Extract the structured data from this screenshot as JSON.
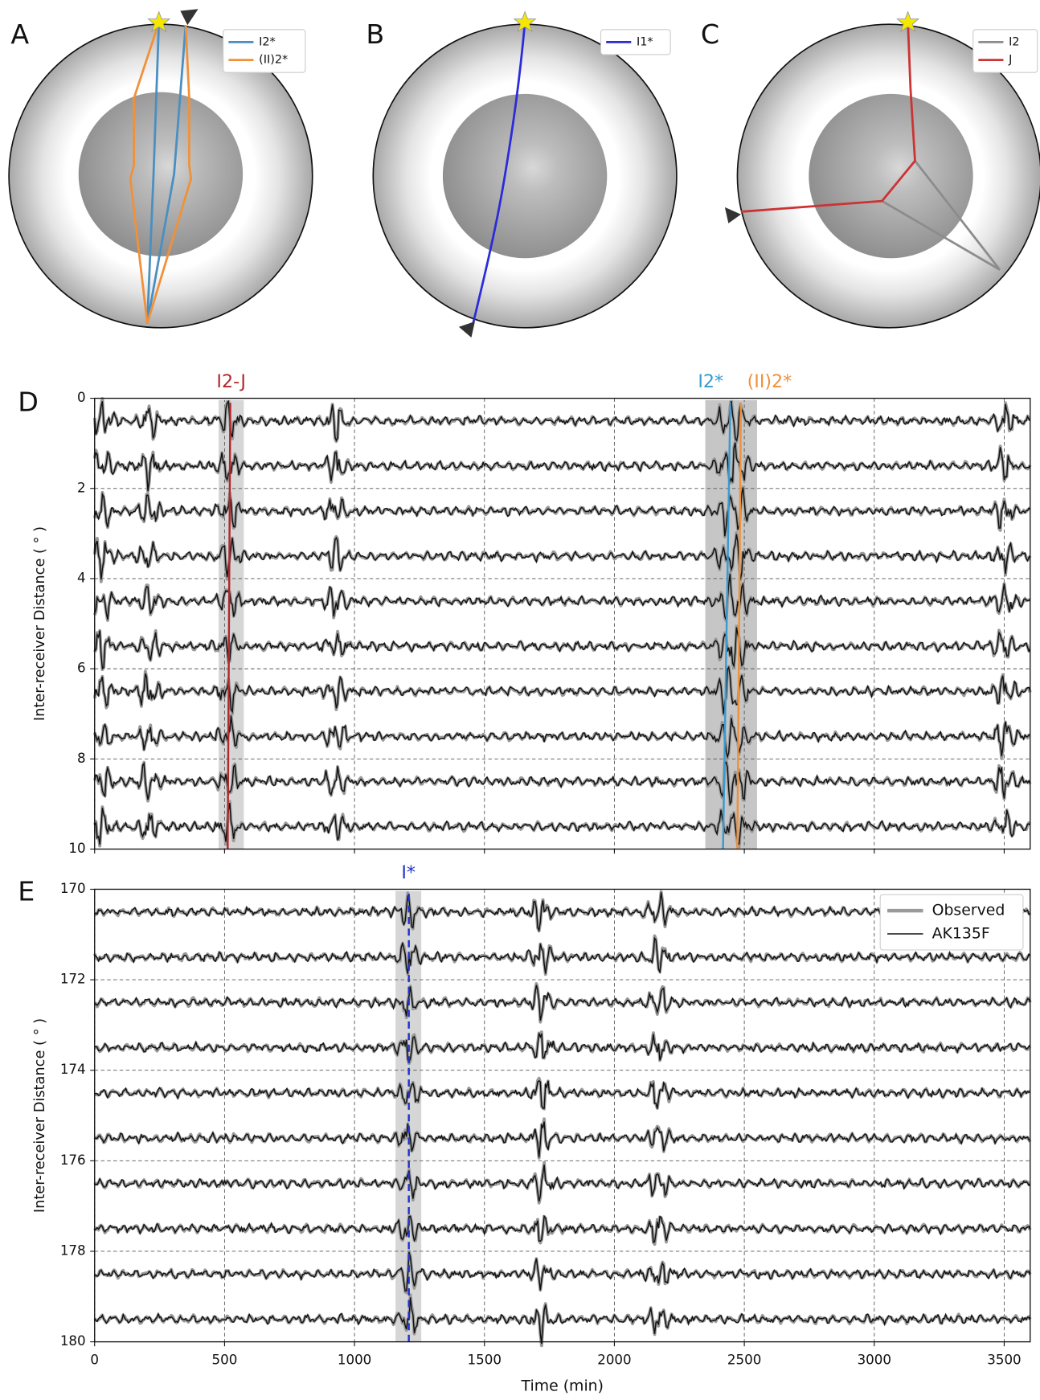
{
  "panels": [
    {
      "label": "A",
      "legend": [
        {
          "name": "I2*",
          "color": "#4a8fc1"
        },
        {
          "name": "(II)2*",
          "color": "#f0913a"
        }
      ]
    },
    {
      "label": "B",
      "legend": [
        {
          "name": "I1*",
          "color": "#2b2bdb"
        }
      ]
    },
    {
      "label": "C",
      "legend": [
        {
          "name": "I2",
          "color": "#8c8c8c"
        },
        {
          "name": "J",
          "color": "#cc3333"
        }
      ]
    }
  ],
  "chart_data": [
    {
      "type": "waveform",
      "label": "D",
      "ylabel": "Inter-receiver Distance ( ° )",
      "xlim": [
        0,
        3600
      ],
      "xticks": [
        0,
        500,
        1000,
        1500,
        2000,
        2500,
        3000,
        3500
      ],
      "ylim": [
        0,
        10
      ],
      "y_inverted": true,
      "yticks": [
        0,
        2,
        4,
        6,
        8,
        10
      ],
      "grid": true,
      "traces": [
        0.5,
        1.5,
        2.5,
        3.5,
        4.5,
        5.5,
        6.5,
        7.5,
        8.5,
        9.5
      ],
      "phases": [
        {
          "label": "I2-J",
          "color": "#b0282d",
          "x": [
            522,
            512
          ],
          "window": [
            477,
            574
          ]
        },
        {
          "label": "I2*",
          "color": "#3a9ad0",
          "x": [
            2446,
            2418
          ],
          "window": [
            2350,
            2549
          ]
        },
        {
          "label": "(II)2*",
          "color": "#f0913a",
          "x": [
            2487,
            2473
          ],
          "window": [
            2350,
            2549
          ]
        }
      ]
    },
    {
      "type": "waveform",
      "label": "E",
      "ylabel": "Inter-receiver Distance ( ° )",
      "xlabel": "Time (min)",
      "xlim": [
        0,
        3600
      ],
      "xticks": [
        0,
        500,
        1000,
        1500,
        2000,
        2500,
        3000,
        3500
      ],
      "ylim": [
        170,
        180
      ],
      "y_inverted": true,
      "yticks": [
        170,
        172,
        174,
        176,
        178,
        180
      ],
      "grid": true,
      "traces": [
        170.5,
        171.5,
        172.5,
        173.5,
        174.5,
        175.5,
        176.5,
        177.5,
        178.5,
        179.5
      ],
      "phases": [
        {
          "label": "I*",
          "color": "#2233cc",
          "x": [
            1209,
            1209
          ],
          "window": [
            1158,
            1257
          ],
          "dash": true
        }
      ],
      "series": [
        {
          "name": "Observed",
          "color": "#9a9a9a"
        },
        {
          "name": "AK135F",
          "color": "#111111"
        }
      ],
      "legend": "upper right"
    }
  ]
}
